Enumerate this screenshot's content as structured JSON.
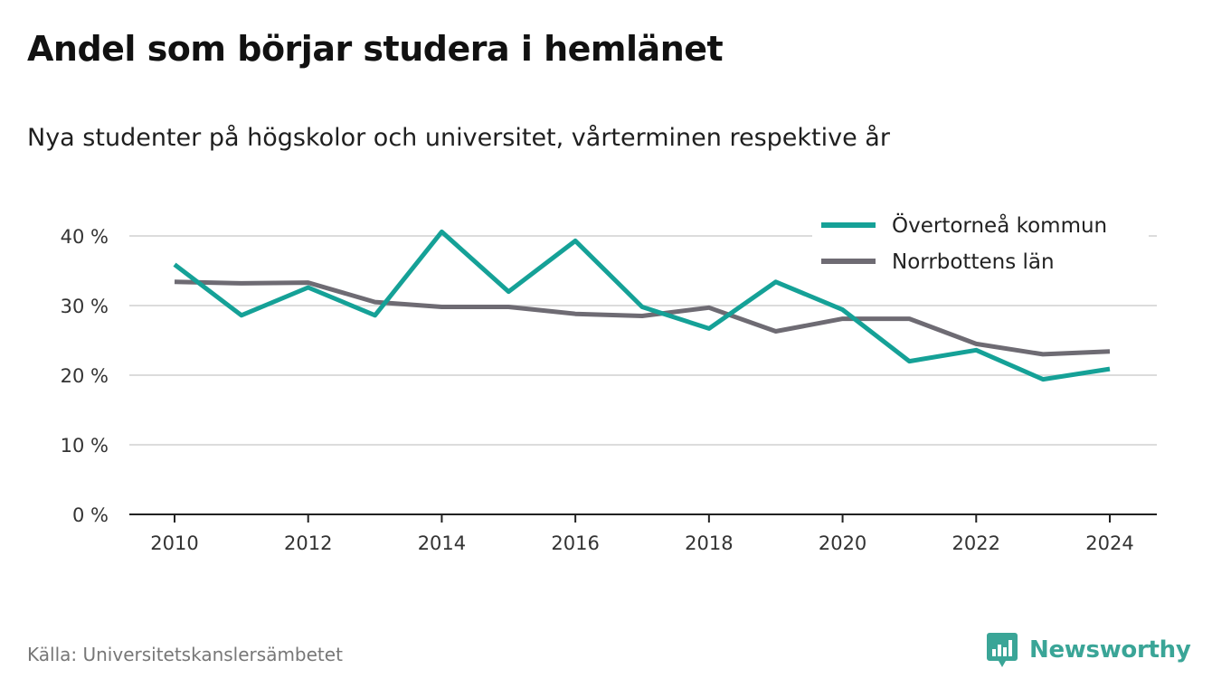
{
  "header": {
    "title": "Andel som börjar studera i hemlänet",
    "subtitle": "Nya studenter på högskolor och universitet, vårterminen respektive år"
  },
  "footer": {
    "source": "Källa: Universitetskanslersämbetet",
    "brand": "Newsworthy",
    "brand_icon": "bar-chart-speech-bubble-icon",
    "brand_color": "#3aa597"
  },
  "chart_data": {
    "type": "line",
    "title": "Andel som börjar studera i hemlänet",
    "subtitle": "Nya studenter på högskolor och universitet, vårterminen respektive år",
    "xlabel": "",
    "ylabel": "",
    "x": [
      2010,
      2011,
      2012,
      2013,
      2014,
      2015,
      2016,
      2017,
      2018,
      2019,
      2020,
      2021,
      2022,
      2023,
      2024
    ],
    "x_ticks": [
      "2010",
      "2012",
      "2014",
      "2016",
      "2018",
      "2020",
      "2022",
      "2024"
    ],
    "y_ticks": [
      "0 %",
      "10 %",
      "20 %",
      "30 %",
      "40 %"
    ],
    "ylim": [
      0,
      40
    ],
    "xlim": [
      2010,
      2024
    ],
    "grid": "horizontal",
    "legend_position": "top-right",
    "series": [
      {
        "name": "Övertorneå kommun",
        "color": "#15a197",
        "values": [
          35.9,
          28.6,
          32.6,
          28.6,
          40.6,
          32.0,
          39.3,
          29.8,
          26.7,
          33.4,
          29.4,
          22.0,
          23.6,
          19.4,
          20.9
        ]
      },
      {
        "name": "Norrbottens län",
        "color": "#6e6b73",
        "values": [
          33.4,
          33.2,
          33.3,
          30.5,
          29.8,
          29.8,
          28.8,
          28.5,
          29.7,
          26.3,
          28.1,
          28.1,
          24.5,
          23.0,
          23.4
        ]
      }
    ]
  }
}
